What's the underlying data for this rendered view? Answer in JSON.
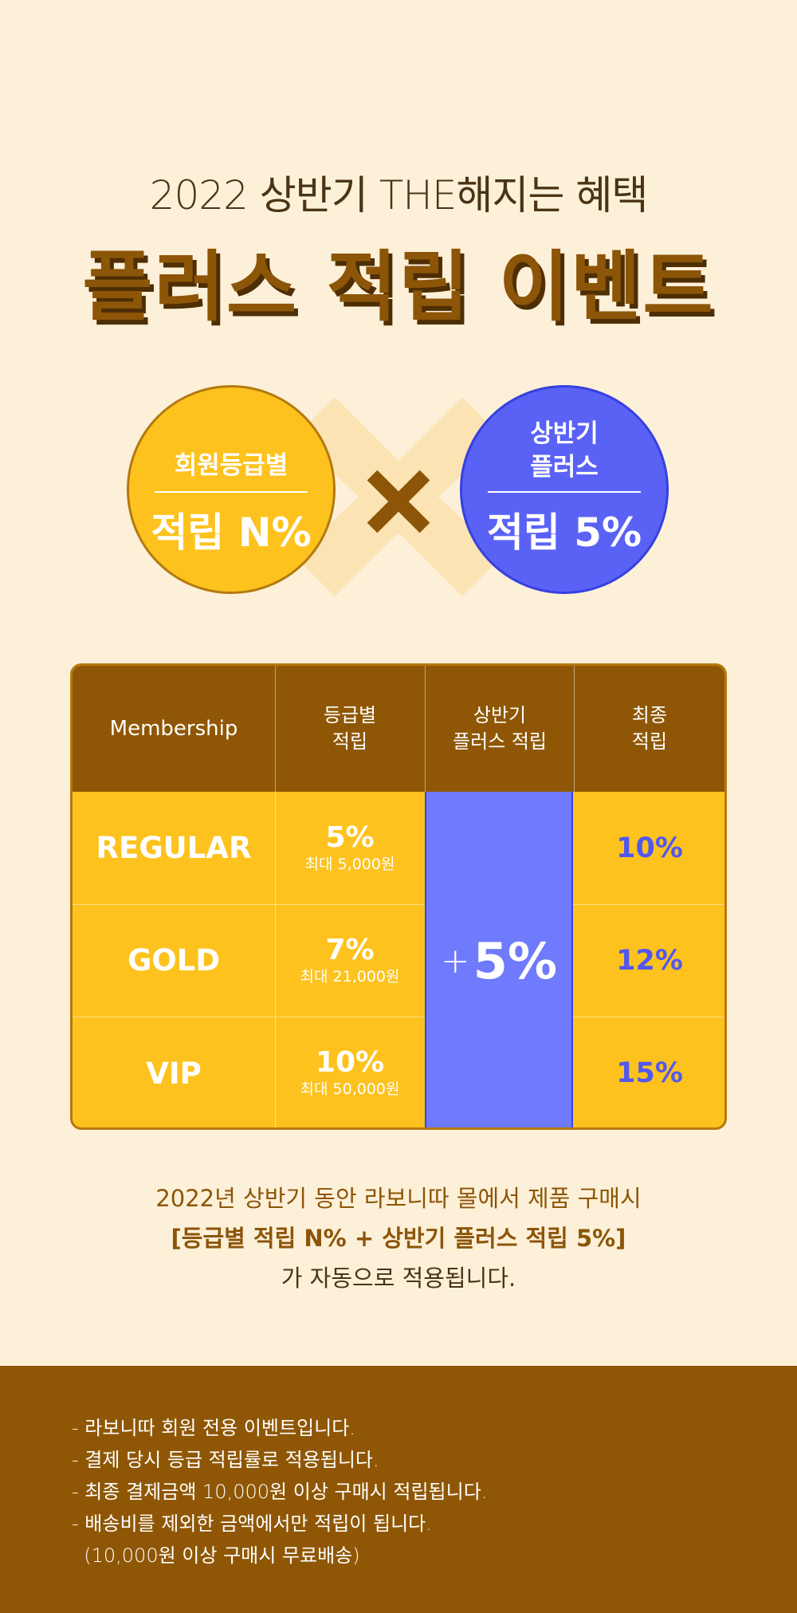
{
  "header": {
    "subtitle": "2022 상반기 THE해지는 혜택",
    "title": "플러스 적립 이벤트"
  },
  "circles": {
    "left": {
      "label": "회원등급별",
      "value": "적립 N%"
    },
    "right": {
      "label_line1": "상반기",
      "label_line2": "플러스",
      "value": "적립 5%"
    }
  },
  "table": {
    "headers": [
      {
        "line1": "Membership",
        "line2": ""
      },
      {
        "line1": "등급별",
        "line2": "적립"
      },
      {
        "line1": "상반기",
        "line2": "플러스 적립"
      },
      {
        "line1": "최종",
        "line2": "적립"
      }
    ],
    "rows": [
      {
        "tier": "REGULAR",
        "rate": "5%",
        "max": "최대 5,000원",
        "final": "10%"
      },
      {
        "tier": "GOLD",
        "rate": "7%",
        "max": "최대 21,000원",
        "final": "12%"
      },
      {
        "tier": "VIP",
        "rate": "10%",
        "max": "최대 50,000원",
        "final": "15%"
      }
    ],
    "plus_sign": "+",
    "plus_value": "5%"
  },
  "description": {
    "line1": "2022년 상반기 동안 라보니따 몰에서 제품 구매시",
    "line2": "[등급별 적립 N% + 상반기 플러스 적립 5%]",
    "line3": "가 자동으로 적용됩니다."
  },
  "notes": [
    "- 라보니따 회원 전용 이벤트입니다.",
    "- 결제 당시 등급 적립률로 적용됩니다.",
    "- 최종 결제금액 10,000원 이상 구매시 적립됩니다.",
    "- 배송비를 제외한 금액에서만 적립이 됩니다.",
    "  (10,000원 이상 구매시 무료배송)"
  ],
  "colors": {
    "background": "#fdf0d8",
    "brown": "#8f5705",
    "yellow": "#fdc21d",
    "blue": "#5a62f5"
  }
}
